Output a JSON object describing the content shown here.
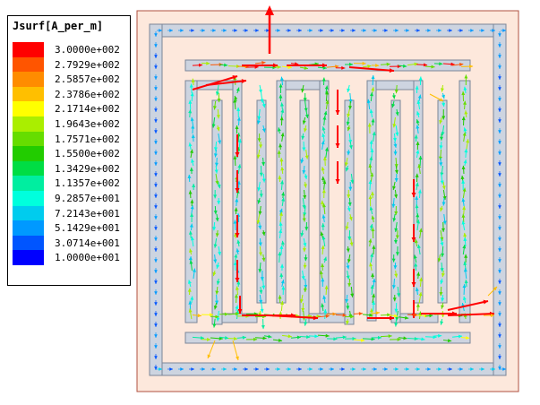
{
  "legend": {
    "title": "Jsurf[A_per_m]",
    "levels": [
      {
        "label": "3.0000e+002",
        "color": "#ff0000"
      },
      {
        "label": "2.7929e+002",
        "color": "#ff5500"
      },
      {
        "label": "2.5857e+002",
        "color": "#ff8c00"
      },
      {
        "label": "2.3786e+002",
        "color": "#ffbf00"
      },
      {
        "label": "2.1714e+002",
        "color": "#ffff00"
      },
      {
        "label": "1.9643e+002",
        "color": "#aaee00"
      },
      {
        "label": "1.7571e+002",
        "color": "#66dd00"
      },
      {
        "label": "1.5500e+002",
        "color": "#22cc00"
      },
      {
        "label": "1.3429e+002",
        "color": "#00dd44"
      },
      {
        "label": "1.1357e+002",
        "color": "#00eea0"
      },
      {
        "label": "9.2857e+001",
        "color": "#00ffdd"
      },
      {
        "label": "7.2143e+001",
        "color": "#00ccee"
      },
      {
        "label": "5.1429e+001",
        "color": "#0099ff"
      },
      {
        "label": "3.0714e+001",
        "color": "#0055ff"
      },
      {
        "label": "1.0000e+001",
        "color": "#0000ff"
      }
    ]
  },
  "colors": {
    "substrate_fill": "#fde8dc",
    "substrate_border": "#b05040",
    "metal_fill": "#cdd4e0",
    "metal_border": "#7a8699"
  }
}
